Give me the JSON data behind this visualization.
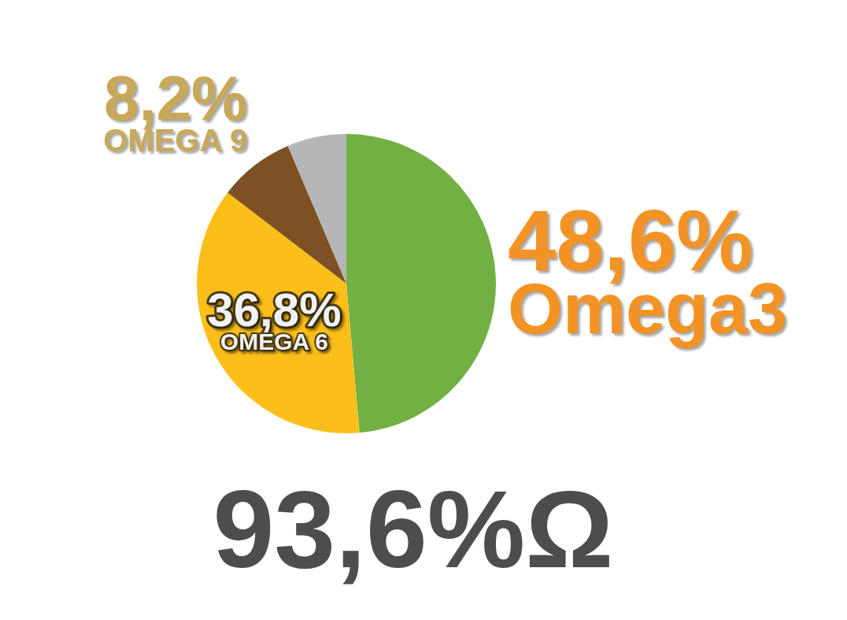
{
  "chart_data": {
    "type": "pie",
    "categories": [
      "Omega3",
      "OMEGA 6",
      "OMEGA 9",
      null
    ],
    "values": [
      48.6,
      36.8,
      8.2,
      6.4
    ],
    "colors": [
      "#72b043",
      "#fcbf1a",
      "#7d5123",
      "#b5b6b8"
    ],
    "value_labels": [
      "48,6%",
      "36,8%",
      "8,2%",
      null
    ],
    "annotations": [
      "93,6%Ω"
    ]
  }
}
